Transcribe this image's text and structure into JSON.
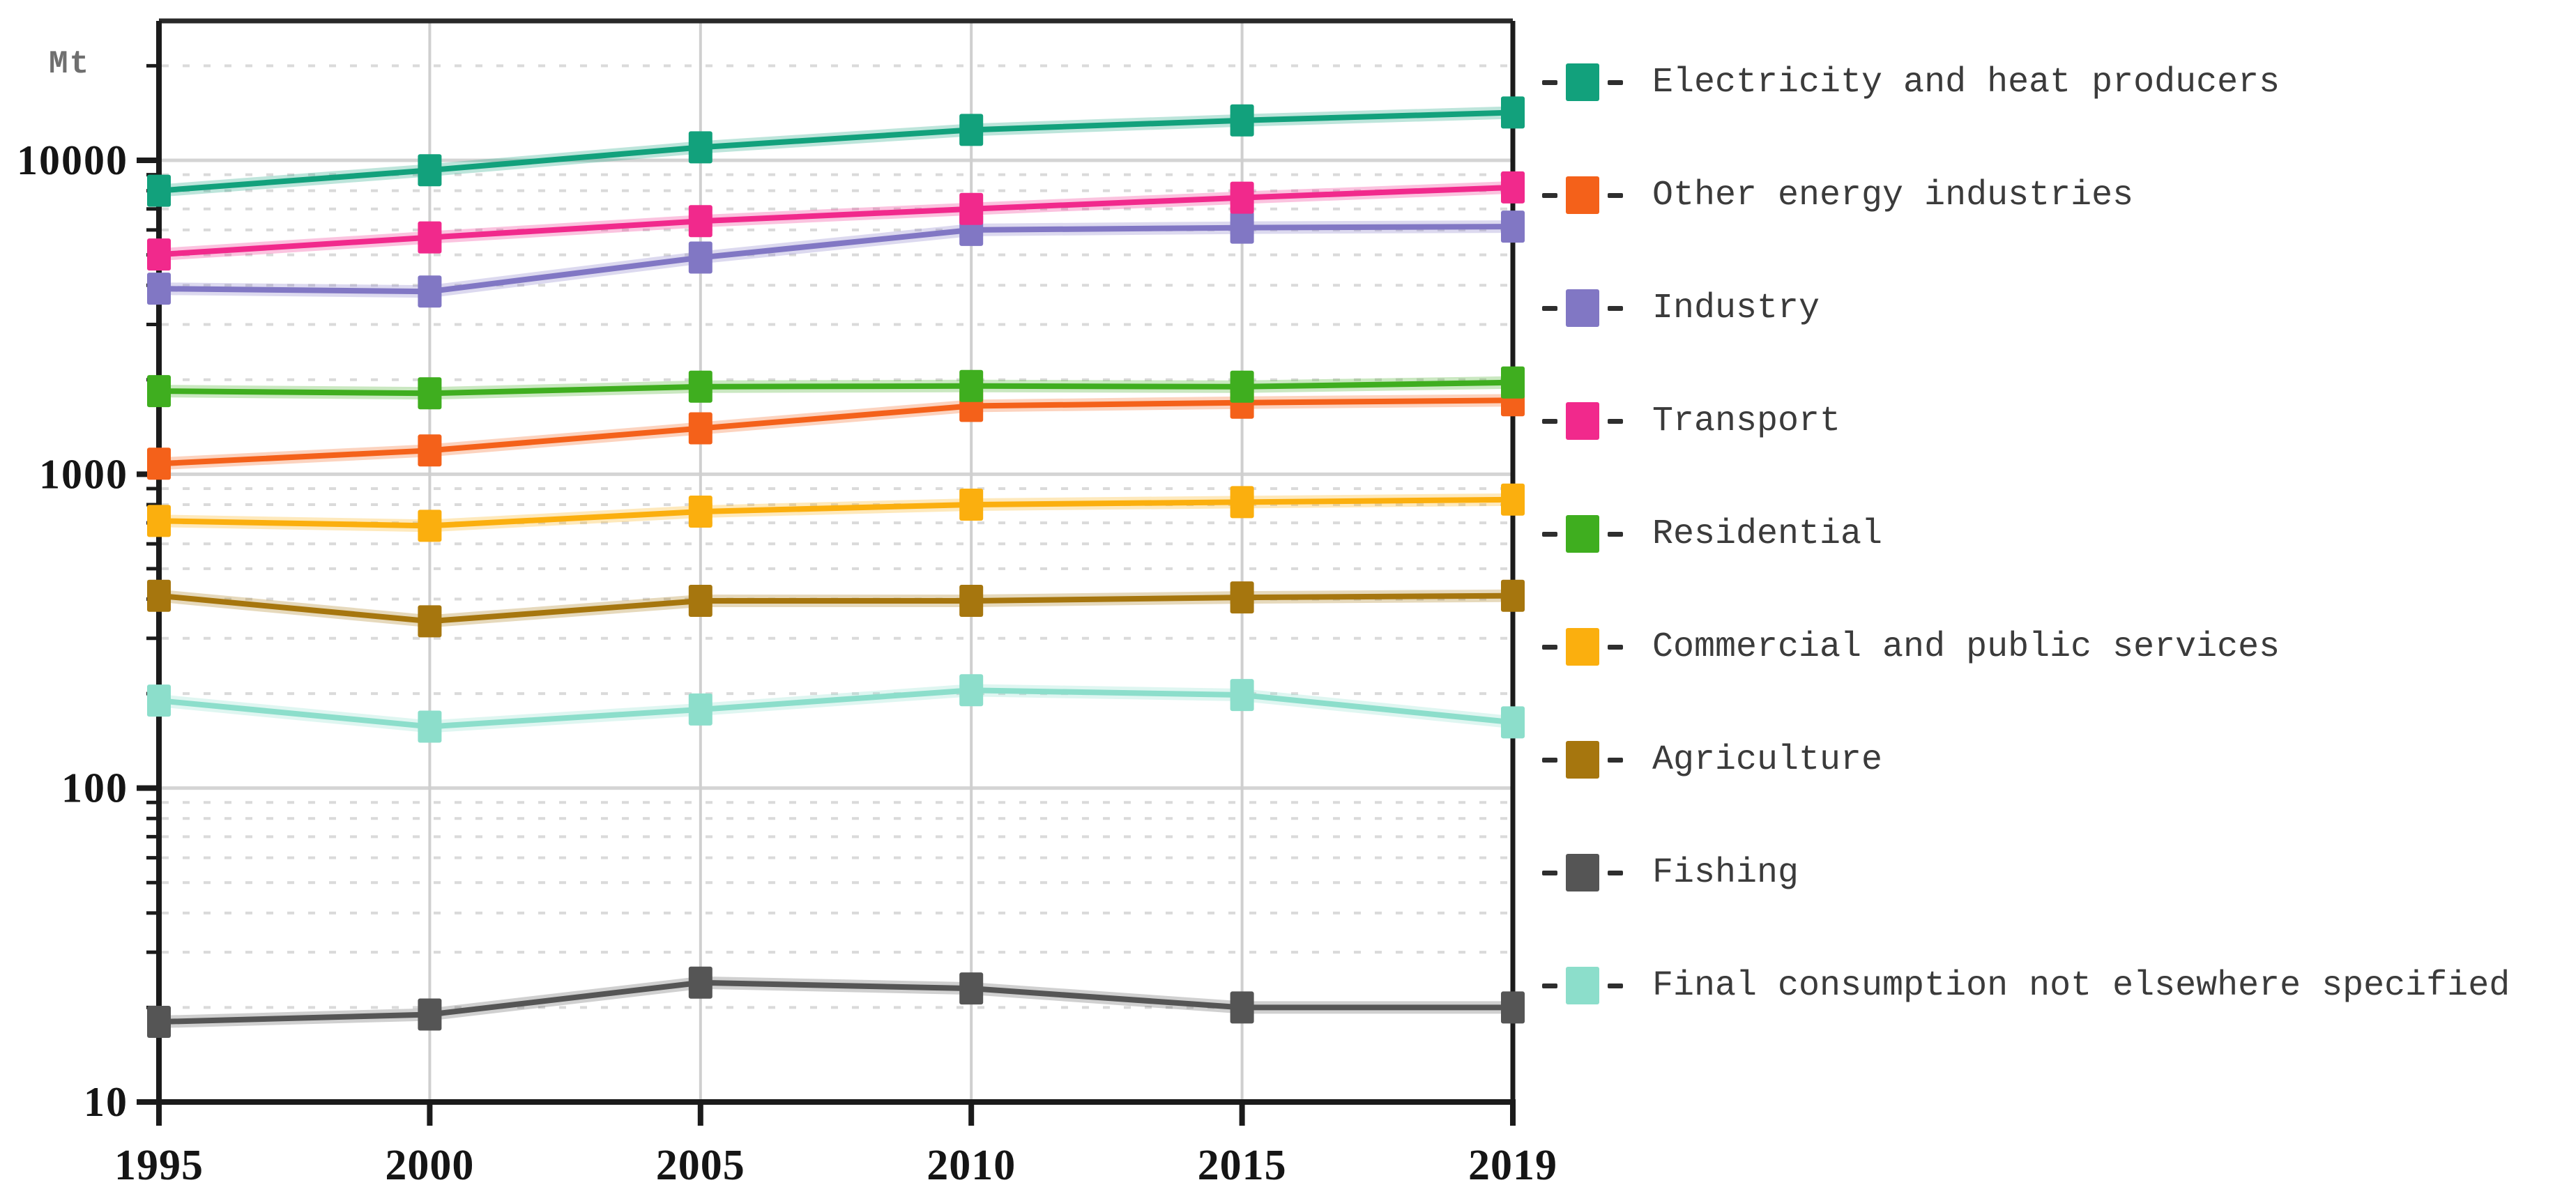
{
  "chart_data": {
    "type": "line",
    "title": "",
    "xlabel": "",
    "ylabel": "Mt",
    "y_scale": "log",
    "ylim": [
      10,
      30000
    ],
    "y_ticks": [
      10,
      100,
      1000,
      10000
    ],
    "grid": "major solid gray + minor dotted, vertical line per year",
    "legend_position": "right",
    "categories": [
      "1995",
      "2000",
      "2005",
      "2010",
      "2015",
      "2019"
    ],
    "series": [
      {
        "name": "Electricity and heat producers",
        "color": "#12a17c",
        "values": [
          8000,
          9300,
          11000,
          12500,
          13400,
          14200
        ]
      },
      {
        "name": "Other energy industries",
        "color": "#f4611a",
        "values": [
          1080,
          1190,
          1400,
          1650,
          1690,
          1720
        ]
      },
      {
        "name": "Industry",
        "color": "#8177c4",
        "values": [
          3900,
          3820,
          4900,
          6000,
          6100,
          6150
        ]
      },
      {
        "name": "Transport",
        "color": "#f1298c",
        "values": [
          5010,
          5680,
          6400,
          7000,
          7600,
          8200
        ]
      },
      {
        "name": "Residential",
        "color": "#3fae1f",
        "values": [
          1840,
          1810,
          1900,
          1910,
          1900,
          1960
        ]
      },
      {
        "name": "Commercial and public services",
        "color": "#fbaf0e",
        "values": [
          710,
          685,
          760,
          800,
          815,
          830
        ]
      },
      {
        "name": "Agriculture",
        "color": "#a6760e",
        "values": [
          410,
          340,
          395,
          395,
          405,
          410
        ]
      },
      {
        "name": "Fishing",
        "color": "#555555",
        "values": [
          18,
          19,
          24,
          23,
          20,
          20
        ]
      },
      {
        "name": "Final consumption not elsewhere specified",
        "color": "#8cdecb",
        "values": [
          190,
          157,
          178,
          205,
          198,
          162
        ]
      }
    ]
  }
}
